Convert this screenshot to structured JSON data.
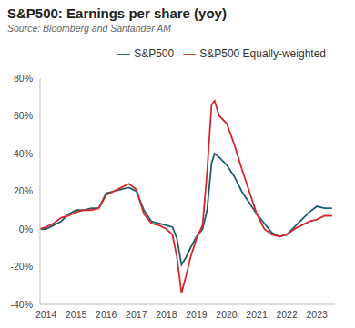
{
  "chart_data": {
    "type": "line",
    "title": "S&P500: Earnings per share (yoy)",
    "subtitle": "Source: Bloomberg and Santander AM",
    "x": [
      2013.8,
      2014.0,
      2014.25,
      2014.5,
      2014.75,
      2015.0,
      2015.25,
      2015.5,
      2015.75,
      2016.0,
      2016.25,
      2016.5,
      2016.75,
      2017.0,
      2017.25,
      2017.5,
      2017.75,
      2018.0,
      2018.2,
      2018.35,
      2018.5,
      2018.65,
      2018.8,
      2019.0,
      2019.2,
      2019.35,
      2019.5,
      2019.6,
      2019.75,
      2020.0,
      2020.25,
      2020.5,
      2020.75,
      2021.0,
      2021.25,
      2021.5,
      2021.75,
      2022.0,
      2022.25,
      2022.5,
      2022.75,
      2023.0,
      2023.25,
      2023.5
    ],
    "series": [
      {
        "name": "S&P500",
        "color": "#1d5d6e",
        "values": [
          0,
          0,
          2,
          4,
          8,
          10,
          10,
          11,
          11,
          19,
          20,
          21,
          22,
          20,
          10,
          4,
          3,
          2,
          1,
          -5,
          -19,
          -15,
          -10,
          -4,
          0,
          10,
          35,
          40,
          38,
          34,
          28,
          20,
          14,
          8,
          3,
          -2,
          -4,
          -3,
          1,
          5,
          9,
          12,
          11,
          11
        ]
      },
      {
        "name": "S&P500 Equally-weighted",
        "color": "#d7262c",
        "values": [
          0,
          1,
          3,
          6,
          7,
          9,
          10,
          10,
          11,
          18,
          20,
          22,
          24,
          21,
          8,
          3,
          2,
          0,
          -3,
          -15,
          -34,
          -25,
          -15,
          -5,
          2,
          30,
          66,
          68,
          60,
          56,
          45,
          32,
          20,
          8,
          0,
          -3,
          -4,
          -3,
          0,
          2,
          4,
          5,
          7,
          7
        ]
      }
    ],
    "xlim": [
      2013.8,
      2023.6
    ],
    "xticks": [
      2014,
      2015,
      2016,
      2017,
      2018,
      2019,
      2020,
      2021,
      2022,
      2023
    ],
    "ylim": [
      -40,
      80
    ],
    "yticks": [
      {
        "value": -40,
        "label": "-40%"
      },
      {
        "value": -20,
        "label": "-20%"
      },
      {
        "value": 0,
        "label": "0%"
      },
      {
        "value": 20,
        "label": "20%"
      },
      {
        "value": 40,
        "label": "40%"
      },
      {
        "value": 60,
        "label": "60%"
      },
      {
        "value": 80,
        "label": "80%"
      }
    ],
    "grid": false,
    "legend": "top right"
  }
}
